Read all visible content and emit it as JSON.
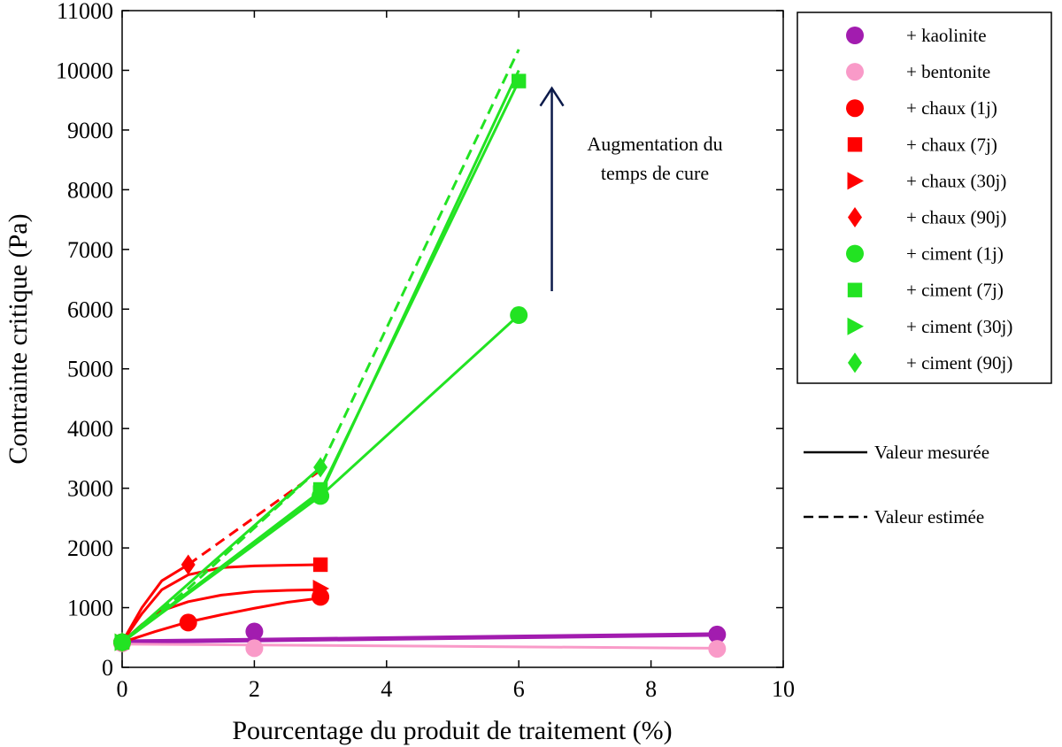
{
  "chart_data": {
    "type": "line",
    "title": "",
    "xlabel": "Pourcentage du produit de traitement (%)",
    "ylabel": "Contrainte critique (Pa)",
    "xlim": [
      0,
      10
    ],
    "ylim": [
      0,
      11000
    ],
    "x_ticks": [
      0,
      2,
      4,
      6,
      8,
      10
    ],
    "y_ticks": [
      0,
      1000,
      2000,
      3000,
      4000,
      5000,
      6000,
      7000,
      8000,
      9000,
      10000,
      11000
    ],
    "grid": false,
    "legend_position": "right",
    "series": [
      {
        "name": "+ kaolinite",
        "color": "#a21caf",
        "marker": "circle",
        "points": [
          [
            0,
            420
          ],
          [
            2,
            600
          ],
          [
            9,
            550
          ]
        ],
        "fit": [
          [
            0,
            430
          ],
          [
            9,
            550
          ]
        ]
      },
      {
        "name": "+ bentonite",
        "color": "#f99ac8",
        "marker": "circle",
        "points": [
          [
            0,
            400
          ],
          [
            2,
            320
          ],
          [
            9,
            310
          ]
        ],
        "fit": [
          [
            0,
            390
          ],
          [
            9,
            320
          ]
        ]
      },
      {
        "name": "+ chaux (1j)",
        "color": "#ff0000",
        "marker": "circle",
        "points": [
          [
            0,
            420
          ],
          [
            1,
            750
          ],
          [
            3,
            1180
          ]
        ],
        "fit": [
          [
            0,
            420
          ],
          [
            0.5,
            600
          ],
          [
            1,
            760
          ],
          [
            1.5,
            880
          ],
          [
            2,
            990
          ],
          [
            2.5,
            1090
          ],
          [
            3,
            1160
          ]
        ]
      },
      {
        "name": "+ chaux (7j)",
        "color": "#ff0000",
        "marker": "square",
        "points": [
          [
            0,
            420
          ],
          [
            3,
            1720
          ]
        ],
        "fit": [
          [
            0,
            420
          ],
          [
            0.3,
            900
          ],
          [
            0.6,
            1300
          ],
          [
            1,
            1550
          ],
          [
            1.5,
            1670
          ],
          [
            2,
            1700
          ],
          [
            2.5,
            1710
          ],
          [
            3,
            1720
          ]
        ]
      },
      {
        "name": "+ chaux (30j)",
        "color": "#ff0000",
        "marker": "triangle-right",
        "points": [
          [
            0,
            420
          ],
          [
            3,
            1320
          ]
        ],
        "fit": [
          [
            0,
            420
          ],
          [
            0.3,
            720
          ],
          [
            0.6,
            950
          ],
          [
            1,
            1100
          ],
          [
            1.5,
            1210
          ],
          [
            2,
            1270
          ],
          [
            2.5,
            1290
          ],
          [
            3,
            1300
          ]
        ]
      },
      {
        "name": "+ chaux (90j)",
        "color": "#ff0000",
        "marker": "diamond",
        "points": [
          [
            0,
            420
          ],
          [
            1,
            1720
          ]
        ],
        "fit": [
          [
            0,
            420
          ],
          [
            0.3,
            1000
          ],
          [
            0.6,
            1450
          ],
          [
            1,
            1720
          ]
        ],
        "estimated": [
          [
            1,
            1720
          ],
          [
            3,
            3300
          ]
        ]
      },
      {
        "name": "+ ciment (1j)",
        "color": "#22e322",
        "marker": "circle",
        "points": [
          [
            0,
            420
          ],
          [
            3,
            2870
          ],
          [
            6,
            5900
          ]
        ],
        "fit": [
          [
            0,
            420
          ],
          [
            3,
            2870
          ],
          [
            6,
            5900
          ]
        ]
      },
      {
        "name": "+ ciment (7j)",
        "color": "#22e322",
        "marker": "square",
        "points": [
          [
            0,
            420
          ],
          [
            3,
            2980
          ],
          [
            6,
            9820
          ]
        ],
        "fit": [
          [
            0,
            420
          ],
          [
            3,
            2950
          ],
          [
            6,
            9820
          ]
        ]
      },
      {
        "name": "+ ciment (30j)",
        "color": "#22e322",
        "marker": "triangle-right",
        "points": [
          [
            0,
            420
          ],
          [
            3,
            2900
          ]
        ],
        "fit": [
          [
            0,
            420
          ],
          [
            3,
            2900
          ],
          [
            6,
            10000
          ]
        ]
      },
      {
        "name": "+ ciment (90j)",
        "color": "#22e322",
        "marker": "diamond",
        "points": [
          [
            0,
            420
          ],
          [
            3,
            3350
          ]
        ],
        "fit": [
          [
            0,
            420
          ],
          [
            3,
            3350
          ]
        ],
        "estimated": [
          [
            0,
            420
          ],
          [
            1,
            1320
          ],
          [
            3,
            3350
          ],
          [
            6,
            10350
          ]
        ]
      }
    ],
    "line_style_legend": [
      {
        "label": "Valeur mesurée",
        "style": "solid"
      },
      {
        "label": "Valeur estimée",
        "style": "dashed"
      }
    ],
    "annotation": {
      "lines": [
        "Augmentation du",
        "temps de cure"
      ],
      "arrow_color": "#0c1a4a",
      "arrow_from": [
        6.5,
        6300
      ],
      "arrow_to": [
        6.5,
        9700
      ]
    }
  }
}
